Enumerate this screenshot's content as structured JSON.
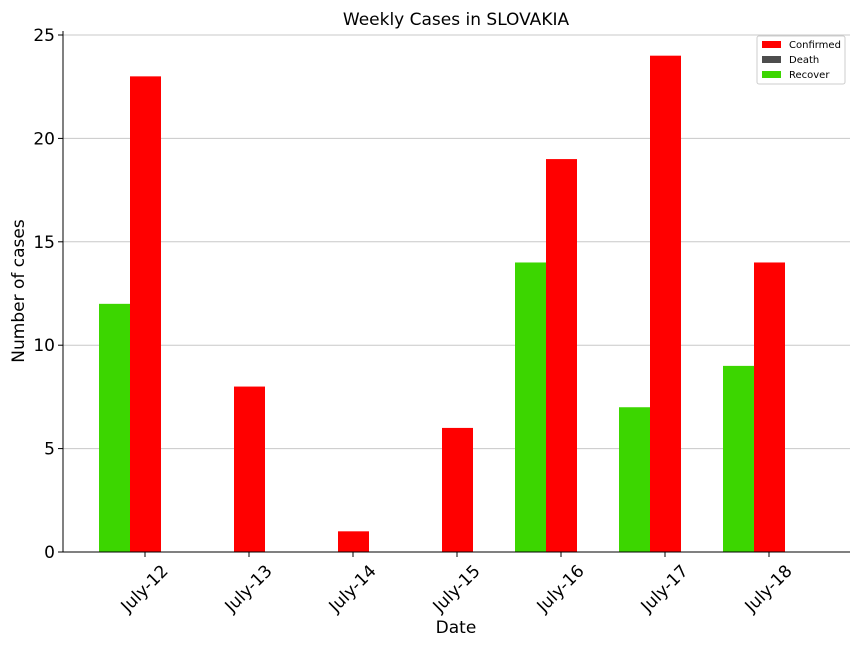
{
  "chart_data": {
    "type": "bar",
    "title": "Weekly Cases in SLOVAKIA",
    "xlabel": "Date",
    "ylabel": "Number of cases",
    "categories": [
      "July-12",
      "July-13",
      "July-14",
      "July-15",
      "July-16",
      "July-17",
      "July-18"
    ],
    "series": [
      {
        "name": "Confirmed",
        "color": "#ff0000",
        "values": [
          23,
          8,
          1,
          6,
          19,
          24,
          14
        ]
      },
      {
        "name": "Death",
        "color": "#4d4d4d",
        "values": [
          0,
          0,
          0,
          0,
          0,
          0,
          0
        ]
      },
      {
        "name": "Recover",
        "color": "#3cd600",
        "values": [
          12,
          0,
          0,
          0,
          14,
          7,
          9
        ]
      }
    ],
    "ylim": [
      0,
      25
    ],
    "yticks": [
      0,
      5,
      10,
      15,
      20,
      25
    ],
    "grid": "y",
    "legend_position": "top-right"
  }
}
